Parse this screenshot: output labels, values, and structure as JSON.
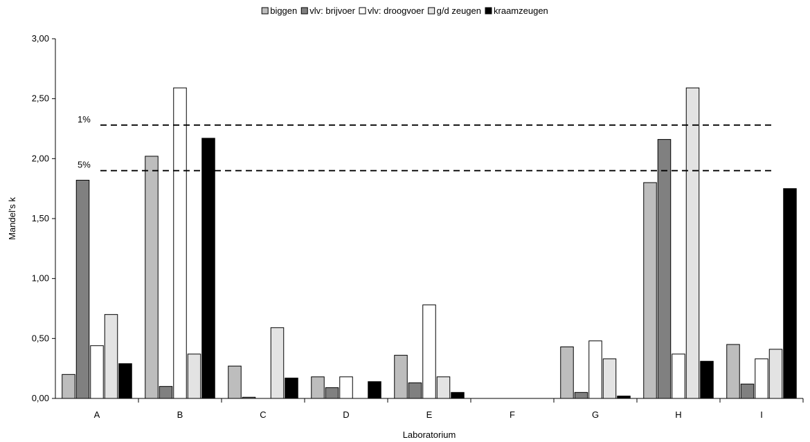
{
  "chart_data": {
    "type": "bar",
    "xlabel": "Laboratorium",
    "ylabel": "Mandel's k",
    "categories": [
      "A",
      "B",
      "C",
      "D",
      "E",
      "F",
      "G",
      "H",
      "I"
    ],
    "ylim": [
      0,
      3.0
    ],
    "yticks": [
      "0,00",
      "0,50",
      "1,00",
      "1,50",
      "2,00",
      "2,50",
      "3,00"
    ],
    "yticks_values": [
      0,
      0.5,
      1.0,
      1.5,
      2.0,
      2.5,
      3.0
    ],
    "legend_position": "top-center",
    "grid": false,
    "series": [
      {
        "name": "biggen",
        "color": "#bdbdbd",
        "values": [
          0.2,
          2.02,
          0.27,
          0.18,
          0.36,
          0.0,
          0.43,
          1.8,
          0.45
        ]
      },
      {
        "name": "vlv: brijvoer",
        "color": "#808080",
        "values": [
          1.82,
          0.1,
          0.01,
          0.09,
          0.13,
          0.0,
          0.05,
          2.16,
          0.12
        ]
      },
      {
        "name": "vlv: droogvoer",
        "color": "#ffffff",
        "values": [
          0.44,
          2.59,
          0.0,
          0.18,
          0.78,
          0.0,
          0.48,
          0.37,
          0.33
        ]
      },
      {
        "name": "g/d zeugen",
        "color": "#e3e3e3",
        "values": [
          0.7,
          0.37,
          0.59,
          0.0,
          0.18,
          0.0,
          0.33,
          2.59,
          0.41
        ]
      },
      {
        "name": "kraamzeugen",
        "color": "#000000",
        "values": [
          0.29,
          2.17,
          0.17,
          0.14,
          0.05,
          0.0,
          0.02,
          0.31,
          1.75
        ]
      }
    ],
    "reference_lines": [
      {
        "label": "1%",
        "value": 2.28
      },
      {
        "label": "5%",
        "value": 1.9
      }
    ]
  }
}
